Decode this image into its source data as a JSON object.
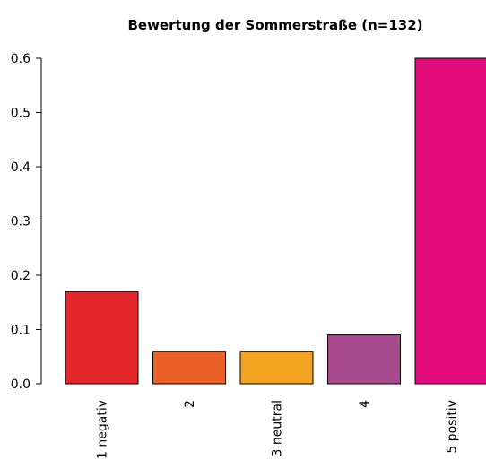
{
  "chart_data": {
    "type": "bar",
    "title": "Bewertung der Sommerstraße (n=132)",
    "xlabel": "",
    "ylabel": "",
    "categories": [
      "1 negativ",
      "2",
      "3 neutral",
      "4",
      "5 positiv"
    ],
    "values": [
      0.17,
      0.06,
      0.06,
      0.09,
      0.6
    ],
    "colors": [
      "#e3262b",
      "#eb6128",
      "#f4a423",
      "#a84b8e",
      "#e30b7b"
    ],
    "ylim": [
      0,
      0.6
    ],
    "yticks": [
      "0.0",
      "0.1",
      "0.2",
      "0.3",
      "0.4",
      "0.5",
      "0.6"
    ],
    "grid": false,
    "legend": "none"
  }
}
